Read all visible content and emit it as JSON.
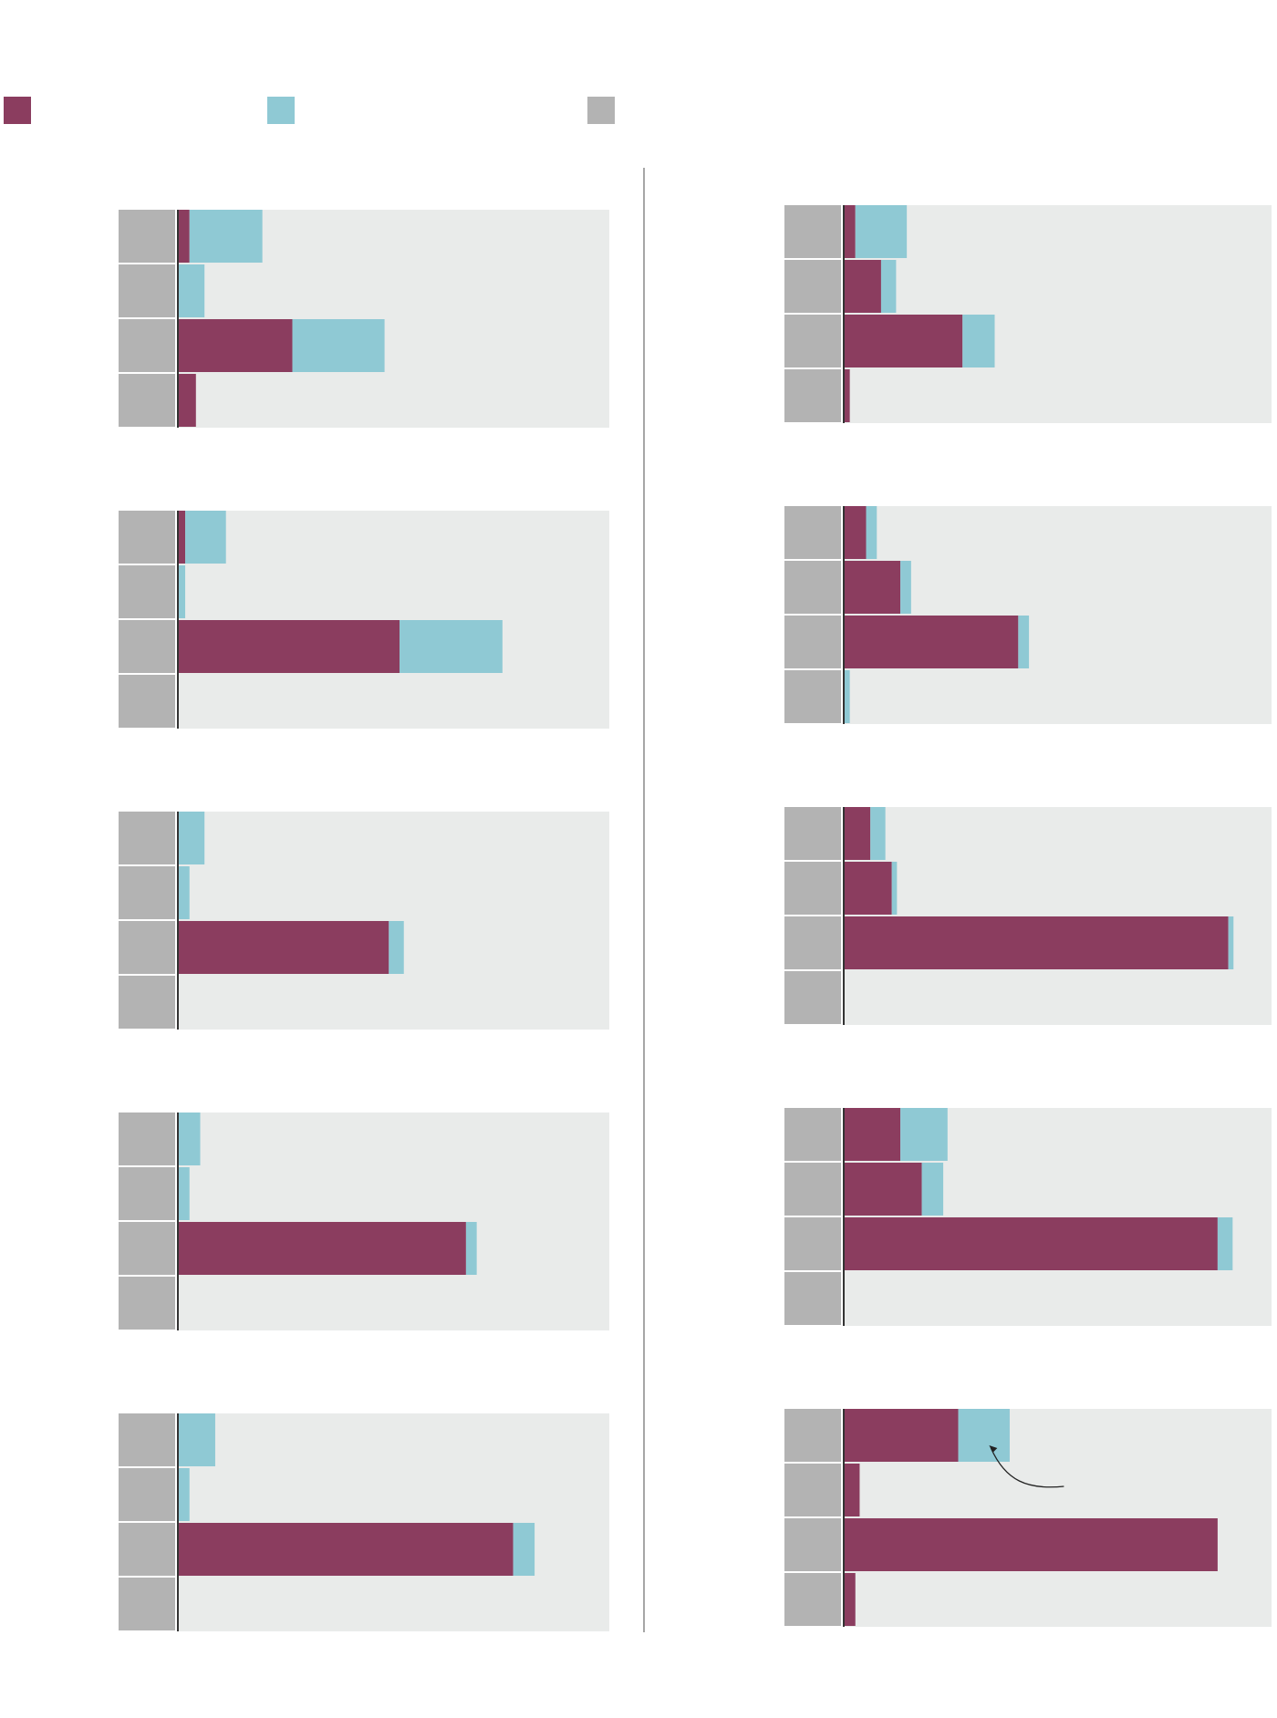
{
  "title": "",
  "legend": {
    "items": [
      {
        "label": "",
        "color": "#8b3d5f"
      },
      {
        "label": "",
        "color": "#8fc9d4"
      },
      {
        "label": "",
        "color": "#b3b3b3"
      }
    ]
  },
  "colors": {
    "series_a": "#8b3d5f",
    "series_b": "#8fc9d4",
    "row_label_block": "#b3b3b3",
    "panel_background": "#e9ebea",
    "axis_line": "#333333",
    "divider": "#a6a6a6"
  },
  "annotation": {
    "text": "",
    "panel_index": 9
  },
  "chart_data": [
    {
      "type": "bar",
      "stacked": true,
      "orientation": "horizontal",
      "title": "",
      "categories": [
        "",
        "",
        "",
        ""
      ],
      "xlim": [
        0,
        100
      ],
      "series": [
        {
          "values": [
            2.5,
            0,
            26.5,
            4
          ]
        },
        {
          "values": [
            17,
            6,
            21.5,
            0
          ]
        }
      ]
    },
    {
      "type": "bar",
      "stacked": true,
      "orientation": "horizontal",
      "title": "",
      "categories": [
        "",
        "",
        "",
        ""
      ],
      "xlim": [
        0,
        100
      ],
      "series": [
        {
          "values": [
            1.5,
            0,
            51.5,
            0
          ]
        },
        {
          "values": [
            9.5,
            1.5,
            24,
            0
          ]
        }
      ]
    },
    {
      "type": "bar",
      "stacked": true,
      "orientation": "horizontal",
      "title": "",
      "categories": [
        "",
        "",
        "",
        ""
      ],
      "xlim": [
        0,
        100
      ],
      "series": [
        {
          "values": [
            0,
            0,
            49,
            0
          ]
        },
        {
          "values": [
            6,
            2.5,
            3.5,
            0
          ]
        }
      ]
    },
    {
      "type": "bar",
      "stacked": true,
      "orientation": "horizontal",
      "title": "",
      "categories": [
        "",
        "",
        "",
        ""
      ],
      "xlim": [
        0,
        100
      ],
      "series": [
        {
          "values": [
            0,
            0,
            67,
            0
          ]
        },
        {
          "values": [
            5,
            2.5,
            2.5,
            0
          ]
        }
      ]
    },
    {
      "type": "bar",
      "stacked": true,
      "orientation": "horizontal",
      "title": "",
      "categories": [
        "",
        "",
        "",
        ""
      ],
      "xlim": [
        0,
        100
      ],
      "series": [
        {
          "values": [
            0,
            0,
            78,
            0
          ]
        },
        {
          "values": [
            8.5,
            2.5,
            5,
            0
          ]
        }
      ]
    },
    {
      "type": "bar",
      "stacked": true,
      "orientation": "horizontal",
      "title": "",
      "categories": [
        "",
        "",
        "",
        ""
      ],
      "xlim": [
        0,
        100
      ],
      "series": [
        {
          "values": [
            2.5,
            8.5,
            27.5,
            1.2
          ]
        },
        {
          "values": [
            12,
            3.5,
            7.5,
            0
          ]
        }
      ]
    },
    {
      "type": "bar",
      "stacked": true,
      "orientation": "horizontal",
      "title": "",
      "categories": [
        "",
        "",
        "",
        ""
      ],
      "xlim": [
        0,
        100
      ],
      "series": [
        {
          "values": [
            5,
            13,
            40.5,
            0
          ]
        },
        {
          "values": [
            2.5,
            2.5,
            2.5,
            1.2
          ]
        }
      ]
    },
    {
      "type": "bar",
      "stacked": true,
      "orientation": "horizontal",
      "title": "",
      "categories": [
        "",
        "",
        "",
        ""
      ],
      "xlim": [
        0,
        100
      ],
      "series": [
        {
          "values": [
            6,
            11,
            89.5,
            0
          ]
        },
        {
          "values": [
            3.5,
            1.2,
            1.2,
            0
          ]
        }
      ]
    },
    {
      "type": "bar",
      "stacked": true,
      "orientation": "horizontal",
      "title": "",
      "categories": [
        "",
        "",
        "",
        ""
      ],
      "xlim": [
        0,
        100
      ],
      "series": [
        {
          "values": [
            13,
            18,
            87,
            0
          ]
        },
        {
          "values": [
            11,
            5,
            3.5,
            0
          ]
        }
      ]
    },
    {
      "type": "bar",
      "stacked": true,
      "orientation": "horizontal",
      "title": "",
      "categories": [
        "",
        "",
        "",
        ""
      ],
      "xlim": [
        0,
        100
      ],
      "series": [
        {
          "values": [
            26.5,
            3.5,
            87,
            2.5
          ]
        },
        {
          "values": [
            12,
            0,
            0,
            0
          ]
        }
      ]
    }
  ]
}
